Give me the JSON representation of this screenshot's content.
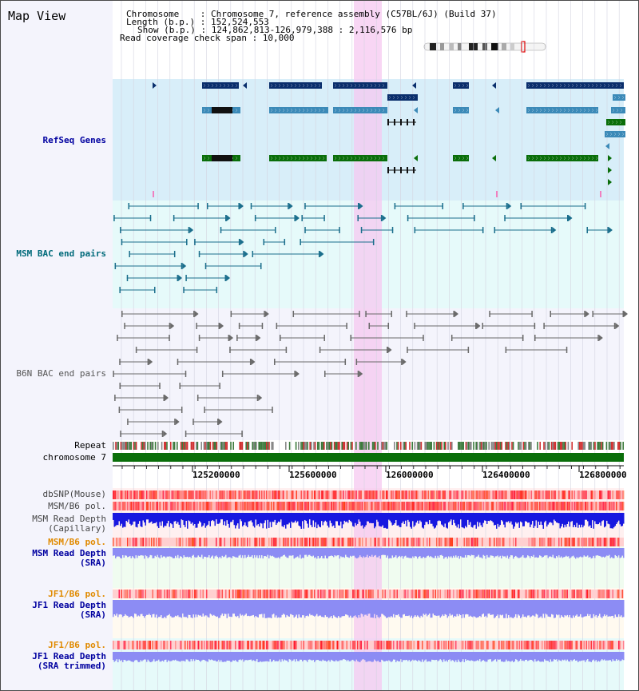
{
  "window": {
    "title": "Map View"
  },
  "header": {
    "chromosome_line": "Chromosome    : Chromosome 7, reference assembly (C57BL/6J) (Build 37)",
    "length_line": "Length (b.p.) : 152,524,553",
    "show_line": "Show (b.p.) : 124,862,813-126,979,388 : 2,116,576 bp",
    "coverage_line": "Read coverage check span : 10,000"
  },
  "tracks": {
    "refseq": "RefSeq Genes",
    "msm_bac": "MSM BAC end pairs",
    "b6n_bac": "B6N BAC end pairs",
    "repeat": "Repeat",
    "chromosome": "chromosome 7",
    "dbsnp": "dbSNP(Mouse)",
    "msm_b6_pol_1": "MSM/B6 pol.",
    "msm_depth_cap_1": "MSM Read Depth",
    "msm_depth_cap_2": "(Capillary)",
    "msm_b6_pol_2": "MSM/B6 pol.",
    "msm_depth_sra_1": "MSM Read Depth",
    "msm_depth_sra_2": "(SRA)",
    "jf1_b6_pol_1": "JF1/B6 pol.",
    "jf1_depth_sra_1": "JF1 Read Depth",
    "jf1_depth_sra_2": "(SRA)",
    "jf1_b6_pol_2": "JF1/B6 pol.",
    "jf1_depth_trim_1": "JF1 Read Depth",
    "jf1_depth_trim_2": "(SRA trimmed)"
  },
  "axis": {
    "ticks": [
      "125200000",
      "125600000",
      "126000000",
      "126400000",
      "126800000"
    ]
  },
  "colors": {
    "gene_dark": "#0a2e6c",
    "gene_mid": "#3c8ab8",
    "gene_green": "#0a6e0a",
    "msm_bac": "#1a6e8c",
    "b6n_bac": "#6a6a6a",
    "highlight": "#f5c8f0",
    "polymorphism": "#ff3030",
    "depth_blue": "#1818e0",
    "depth_lilac": "#8c8cf4",
    "label_blue": "#0000a0",
    "label_orange": "#e08a00",
    "label_teal": "#006a7a"
  }
}
